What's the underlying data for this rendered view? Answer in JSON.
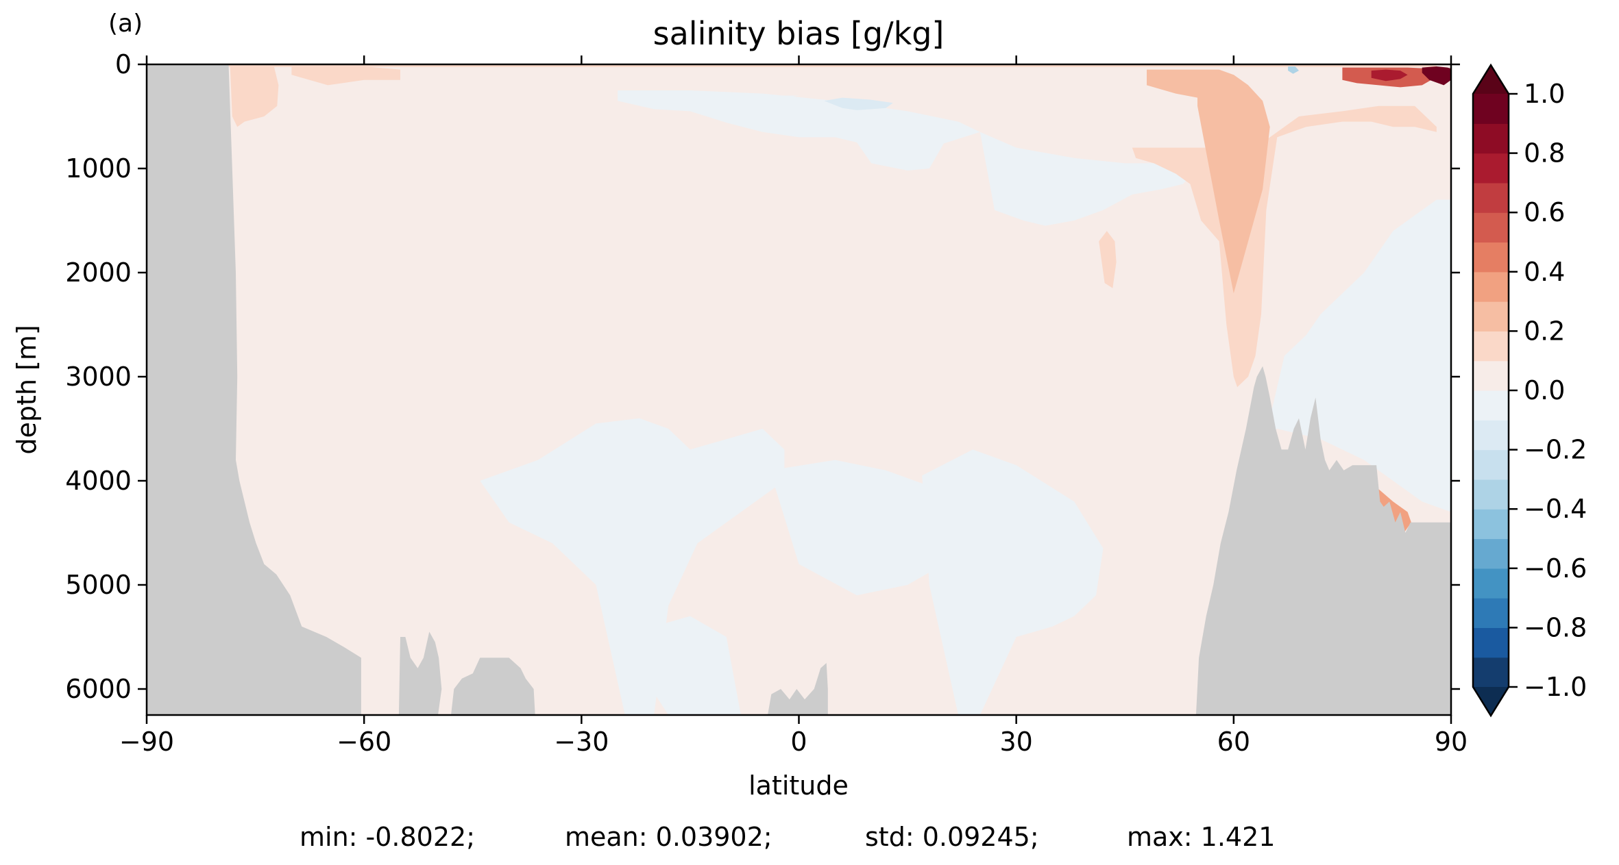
{
  "panel_label": "(a)",
  "stats": {
    "min": "min: -0.8022;",
    "mean": "mean: 0.03902;",
    "std": "std: 0.09245;",
    "max": "max: 1.421"
  },
  "chart_data": {
    "type": "heatmap",
    "title": "salinity bias [g/kg]",
    "xlabel": "latitude",
    "ylabel": "depth [m]",
    "xlim": [
      -90,
      90
    ],
    "ylim": [
      6250,
      0
    ],
    "y_inverted": true,
    "grid": false,
    "x_ticks": [
      -90,
      -60,
      -30,
      0,
      30,
      60,
      90
    ],
    "x_tick_labels": [
      "−90",
      "−60",
      "−30",
      "0",
      "30",
      "60",
      "90"
    ],
    "y_ticks": [
      0,
      1000,
      2000,
      3000,
      4000,
      5000,
      6000
    ],
    "y_tick_labels": [
      "0",
      "1000",
      "2000",
      "3000",
      "4000",
      "5000",
      "6000"
    ],
    "colorbar": {
      "colormap": "RdBu_r",
      "vmin": -1.0,
      "vmax": 1.0,
      "levels": [
        -1.0,
        -0.9,
        -0.8,
        -0.7,
        -0.6,
        -0.5,
        -0.4,
        -0.3,
        -0.2,
        -0.1,
        0.0,
        0.1,
        0.2,
        0.3,
        0.4,
        0.5,
        0.6,
        0.7,
        0.8,
        0.9,
        1.0
      ],
      "extend": "both",
      "ticks": [
        -1.0,
        -0.8,
        -0.6,
        -0.4,
        -0.2,
        0.0,
        0.2,
        0.4,
        0.6,
        0.8,
        1.0
      ],
      "tick_labels": [
        "−1.0",
        "−0.8",
        "−0.6",
        "−0.4",
        "−0.2",
        "0.0",
        "0.2",
        "0.4",
        "0.6",
        "0.8",
        "1.0"
      ],
      "colors": [
        "#143d6e",
        "#1a5aa0",
        "#2e7ab6",
        "#4393c3",
        "#66a9d0",
        "#8cc2de",
        "#aed3e6",
        "#c8e0ee",
        "#dceaf3",
        "#ecf2f6",
        "#f7ece8",
        "#fad8c8",
        "#f6bea3",
        "#f1a181",
        "#e57e63",
        "#d35b4f",
        "#c13d40",
        "#aa1b2f",
        "#8e0c25",
        "#6f0220"
      ],
      "under_color": "#0d2d52",
      "over_color": "#5a0318"
    },
    "land_color": "#cccccc",
    "background_field": 0.02,
    "anomalies": [
      {
        "lat": [
          -90,
          -78.7,
          -78.2,
          -77.7,
          -77.5,
          -77.7,
          -77.2,
          -76.5,
          -75.8,
          -74.9,
          -73.8,
          -72.1,
          -70.2,
          -68.6,
          -65.2,
          -62.7,
          -60.4,
          -60.4,
          -90
        ],
        "depth": [
          0,
          0,
          1000,
          2000,
          3000,
          3800,
          4000,
          4200,
          4400,
          4600,
          4800,
          4900,
          5100,
          5400,
          5500,
          5600,
          5700,
          6250,
          6250
        ],
        "value": "land"
      },
      {
        "lat": [
          -55.2,
          -55,
          -54.3,
          -53.6,
          -52.6,
          -51.8,
          -51,
          -50.2,
          -49.7,
          -49.3,
          -49.8,
          -55.2
        ],
        "depth": [
          6250,
          5500,
          5500,
          5700,
          5800,
          5700,
          5450,
          5550,
          5700,
          6000,
          6250,
          6250
        ],
        "value": "land"
      },
      {
        "lat": [
          -48,
          -47.6,
          -46.5,
          -45,
          -44,
          -42.6,
          -40,
          -38.4,
          -37.7,
          -36.6,
          -36.4,
          -48
        ],
        "depth": [
          6250,
          6000,
          5900,
          5850,
          5700,
          5700,
          5700,
          5800,
          5900,
          6000,
          6250,
          6250
        ],
        "value": "land"
      },
      {
        "lat": [
          -4.3,
          -3.8,
          -2.5,
          -1.3,
          -0.3,
          0.8,
          2.1,
          3.0,
          3.8,
          4.0,
          4.0,
          -4.3
        ],
        "depth": [
          6250,
          6050,
          6000,
          6100,
          6000,
          6100,
          6000,
          5800,
          5750,
          6000,
          6250,
          6250
        ],
        "value": "land"
      },
      {
        "lat": [
          90,
          54.8,
          55.2,
          56.2,
          57.2,
          58.2,
          59.3,
          60.4,
          61.7,
          62.8,
          63.2,
          64.0,
          64.4,
          65.0,
          65.8,
          66.6,
          67.5,
          68.3,
          69.0,
          69.9,
          70.6,
          71.3,
          72.0,
          72.6,
          73.2,
          74.2,
          75.2,
          76.4,
          77.8,
          79.7,
          80.2,
          80.7,
          81.5,
          82.3,
          83.0,
          83.7,
          84.4,
          85.7,
          87.0,
          89,
          90
        ],
        "depth": [
          6250,
          6250,
          5700,
          5300,
          5000,
          4600,
          4300,
          3900,
          3500,
          3100,
          3000,
          2900,
          3000,
          3200,
          3500,
          3700,
          3700,
          3500,
          3400,
          3700,
          3400,
          3200,
          3600,
          3800,
          3900,
          3800,
          3900,
          3850,
          3850,
          3850,
          4200,
          4250,
          4200,
          4400,
          4300,
          4500,
          4400,
          4400,
          4400,
          4400,
          4400
        ],
        "value": "land"
      },
      {
        "lat": [
          -78.5,
          -78,
          -77.5,
          -76.6,
          -75,
          -72.5,
          -71.8,
          -72,
          -73.8,
          -76.5,
          -77.5,
          -78.2,
          -78.5
        ],
        "depth": [
          0,
          0,
          0,
          0,
          0,
          0,
          200,
          400,
          500,
          550,
          600,
          500,
          0
        ],
        "value": 0.15
      },
      {
        "lat": [
          -70,
          -60,
          -55,
          -55,
          -60,
          -65,
          -70
        ],
        "depth": [
          20,
          20,
          50,
          150,
          150,
          200,
          100
        ],
        "value": 0.1
      },
      {
        "lat": [
          -25,
          -20,
          -15,
          -10,
          -5,
          0,
          -5,
          -10,
          -15,
          -20,
          -25
        ],
        "depth": [
          280,
          260,
          250,
          280,
          300,
          300,
          350,
          430,
          450,
          400,
          300
        ],
        "value": -0.05
      },
      {
        "lat": [
          -80,
          -75,
          -70,
          -65,
          -60,
          -55,
          -50,
          -45,
          -40,
          -35,
          -30,
          -25,
          -20,
          -15,
          -10,
          -5,
          0,
          5,
          10,
          15,
          20,
          25,
          30,
          35,
          40,
          45,
          50,
          55,
          60,
          65,
          70,
          75,
          80,
          85,
          88,
          88,
          85,
          80,
          75,
          70,
          65,
          60,
          55,
          50,
          45,
          40,
          35,
          30,
          25,
          20,
          15,
          10,
          5,
          0,
          -5,
          -10,
          -15,
          -20,
          -25,
          -30,
          -35,
          -40,
          -45,
          -50,
          -55,
          -60,
          -65,
          -70,
          -75,
          -80
        ],
        "depth": [
          0,
          0,
          0,
          0,
          0,
          0,
          0,
          0,
          0,
          0,
          0,
          0,
          0,
          0,
          0,
          0,
          0,
          0,
          0,
          0,
          0,
          0,
          0,
          0,
          0,
          0,
          0,
          0,
          0,
          0,
          0,
          0,
          0,
          0,
          0,
          25,
          25,
          25,
          25,
          25,
          25,
          25,
          25,
          25,
          25,
          25,
          25,
          25,
          25,
          25,
          25,
          25,
          25,
          25,
          25,
          25,
          25,
          25,
          25,
          25,
          25,
          25,
          25,
          25,
          25,
          25,
          25,
          25,
          25,
          25
        ],
        "value": 0.1
      },
      {
        "lat": [
          -25,
          -15,
          -5,
          5,
          15,
          22,
          25,
          20,
          18,
          15,
          10,
          8,
          5,
          0,
          -5,
          -10,
          -15,
          -20,
          -25
        ],
        "depth": [
          250,
          250,
          280,
          350,
          450,
          550,
          650,
          760,
          1000,
          1020,
          950,
          750,
          700,
          700,
          650,
          560,
          450,
          430,
          350
        ],
        "value": -0.05
      },
      {
        "lat": [
          3.5,
          6,
          10,
          13,
          12,
          8,
          6,
          3.5
        ],
        "depth": [
          350,
          320,
          340,
          370,
          420,
          440,
          420,
          350
        ],
        "value": -0.12
      },
      {
        "lat": [
          25,
          30,
          38,
          45,
          50,
          55,
          53,
          50,
          46,
          42,
          38,
          34,
          31,
          27,
          25
        ],
        "depth": [
          650,
          800,
          900,
          950,
          950,
          1000,
          1150,
          1200,
          1250,
          1400,
          1500,
          1550,
          1500,
          1400,
          650
        ],
        "value": -0.05
      },
      {
        "lat": [
          46,
          50,
          54,
          56,
          58,
          60,
          62,
          64,
          66,
          69,
          75,
          80,
          85,
          88,
          88,
          85,
          82,
          79,
          75,
          70,
          68,
          66,
          64.5,
          63.8,
          63,
          62,
          60.5,
          60,
          59,
          58,
          55.5,
          54,
          52,
          49,
          46.5,
          46
        ],
        "depth": [
          800,
          800,
          800,
          800,
          780,
          760,
          750,
          750,
          650,
          500,
          450,
          400,
          400,
          600,
          650,
          600,
          600,
          550,
          550,
          600,
          650,
          700,
          1400,
          2400,
          2800,
          3000,
          3100,
          3000,
          2500,
          1700,
          1500,
          1150,
          1050,
          950,
          900,
          800
        ],
        "value": 0.15
      },
      {
        "lat": [
          48,
          52,
          55,
          58,
          60,
          62,
          60,
          58,
          55,
          52,
          48
        ],
        "depth": [
          50,
          50,
          50,
          50,
          100,
          200,
          280,
          300,
          320,
          280,
          200
        ],
        "value": 0.28
      },
      {
        "lat": [
          55,
          60,
          62,
          64,
          65,
          64,
          62,
          60,
          58,
          55
        ],
        "depth": [
          100,
          100,
          200,
          350,
          600,
          1200,
          1700,
          2200,
          1500,
          400
        ],
        "value": 0.2
      },
      {
        "lat": [
          75,
          78,
          81,
          84,
          87,
          88,
          86,
          83,
          80,
          77,
          75
        ],
        "depth": [
          30,
          30,
          30,
          30,
          40,
          120,
          200,
          220,
          200,
          180,
          150
        ],
        "value": 0.55
      },
      {
        "lat": [
          79,
          81,
          83,
          84,
          83,
          81,
          79
        ],
        "depth": [
          60,
          50,
          60,
          100,
          140,
          160,
          130
        ],
        "value": 0.78
      },
      {
        "lat": [
          86,
          88,
          89.5,
          90,
          90,
          89,
          87,
          86
        ],
        "depth": [
          30,
          20,
          30,
          40,
          150,
          200,
          150,
          80
        ],
        "value": 0.9
      },
      {
        "lat": [
          67.5,
          68.5,
          69,
          68.2,
          67.5
        ],
        "depth": [
          20,
          20,
          60,
          90,
          60
        ],
        "value": -0.4
      },
      {
        "lat": [
          -4,
          5,
          12,
          20,
          22,
          20,
          15,
          8,
          0,
          -4
        ],
        "depth": [
          3900,
          3800,
          3900,
          4100,
          4400,
          4800,
          5000,
          5100,
          4800,
          3900
        ],
        "value": -0.05
      },
      {
        "lat": [
          -44,
          -36,
          -28,
          -22,
          -18,
          -15,
          -10,
          -5,
          -2,
          -2,
          -8,
          -14,
          -18,
          -20,
          -24,
          -28,
          -34,
          -40,
          -44
        ],
        "depth": [
          4000,
          3800,
          3450,
          3400,
          3500,
          3700,
          3600,
          3500,
          3700,
          4000,
          4300,
          4600,
          5200,
          6250,
          6250,
          5000,
          4600,
          4400,
          4000
        ],
        "value": -0.05
      },
      {
        "lat": [
          17,
          24,
          30,
          38,
          42,
          41,
          38,
          35,
          30,
          25,
          22,
          18,
          17
        ],
        "depth": [
          3950,
          3700,
          3850,
          4200,
          4650,
          5100,
          5300,
          5400,
          5500,
          6250,
          6250,
          5000,
          3950
        ],
        "value": -0.05
      },
      {
        "lat": [
          -25,
          -20,
          -15,
          -10,
          -8,
          -12,
          -18,
          -25
        ],
        "depth": [
          5500,
          5400,
          5300,
          5500,
          6250,
          6250,
          6250,
          5500
        ],
        "value": -0.05
      },
      {
        "lat": [
          63,
          65,
          67,
          70,
          72,
          75,
          78,
          80,
          82,
          86,
          88,
          90,
          90,
          86,
          82,
          78,
          72,
          66
        ],
        "depth": [
          3600,
          3400,
          2800,
          2600,
          2400,
          2200,
          2000,
          1800,
          1600,
          1400,
          1300,
          1300,
          4300,
          4200,
          4000,
          3800,
          3600,
          3500
        ],
        "value": -0.05
      },
      {
        "lat": [
          78.5,
          79.5,
          82,
          84,
          84.5,
          83.5,
          82,
          80,
          79,
          78.5
        ],
        "depth": [
          4200,
          4050,
          4200,
          4300,
          4400,
          4500,
          4400,
          4450,
          4500,
          4200
        ],
        "value": 0.3
      },
      {
        "lat": [
          41.4,
          42.5,
          43.6,
          43.8,
          43.3,
          42.2,
          41.4
        ],
        "depth": [
          1700,
          1600,
          1700,
          1900,
          2150,
          2100,
          1700
        ],
        "value": 0.18
      }
    ]
  }
}
